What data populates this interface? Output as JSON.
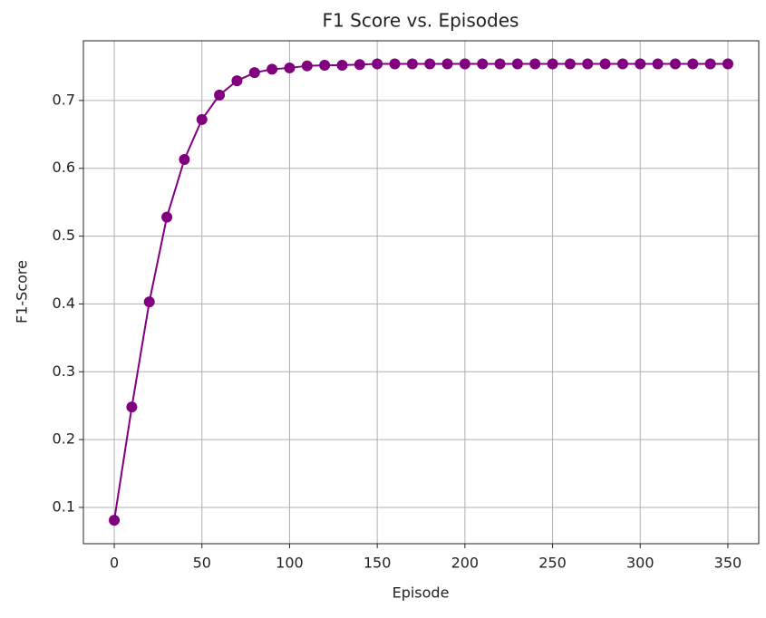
{
  "chart_data": {
    "type": "line",
    "title": "F1 Score vs. Episodes",
    "xlabel": "Episode",
    "ylabel": "F1-Score",
    "x": [
      0,
      10,
      20,
      30,
      40,
      50,
      60,
      70,
      80,
      90,
      100,
      110,
      120,
      130,
      140,
      150,
      160,
      170,
      180,
      190,
      200,
      210,
      220,
      230,
      240,
      250,
      260,
      270,
      280,
      290,
      300,
      310,
      320,
      330,
      340,
      350
    ],
    "series": [
      {
        "color": "#800080",
        "values": [
          0.081,
          0.248,
          0.403,
          0.528,
          0.613,
          0.672,
          0.708,
          0.729,
          0.741,
          0.746,
          0.748,
          0.751,
          0.752,
          0.752,
          0.753,
          0.754,
          0.754,
          0.754,
          0.754,
          0.754,
          0.754,
          0.754,
          0.754,
          0.754,
          0.754,
          0.754,
          0.754,
          0.754,
          0.754,
          0.754,
          0.754,
          0.754,
          0.754,
          0.754,
          0.754,
          0.754
        ]
      }
    ],
    "xlim": [
      -17.6,
      367.6
    ],
    "xticks": [
      0,
      50,
      100,
      150,
      200,
      250,
      300,
      350
    ],
    "ylim": [
      0.0465,
      0.788
    ],
    "yticks": [
      0.1,
      0.2,
      0.3,
      0.4,
      0.5,
      0.6,
      0.7
    ],
    "grid": true
  }
}
